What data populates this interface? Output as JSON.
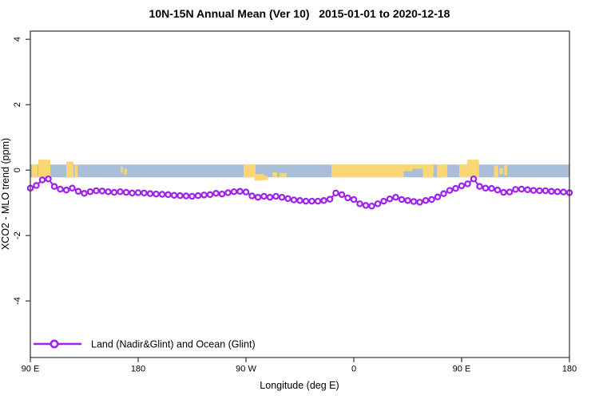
{
  "title": "10N-15N Annual Mean (Ver 10)   2015-01-01 to 2020-12-18",
  "legend": {
    "label": "Land (Nadir&Glint) and Ocean (Glint)"
  },
  "colors": {
    "line": "#A020F0",
    "marker_fill": "#FFFFFF",
    "ocean_band": "#A8BED9",
    "land": "#FBD774",
    "axis": "#333333",
    "text": "#000000",
    "background": "#FFFFFF"
  },
  "chart_data": {
    "type": "line",
    "title": "10N-15N Annual Mean (Ver 10)   2015-01-01 to 2020-12-18",
    "xlabel": "Longitude (deg E)",
    "ylabel": "XCO2 - MLO trend (ppm)",
    "x_range": [
      90,
      540
    ],
    "ylim": [
      -5.73,
      4.25
    ],
    "grid": false,
    "legend_position": "bottom-left-inside",
    "x_ticks": [
      {
        "pos": 90,
        "label": "90 E"
      },
      {
        "pos": 180,
        "label": "180"
      },
      {
        "pos": 270,
        "label": "90 W"
      },
      {
        "pos": 360,
        "label": "0"
      },
      {
        "pos": 450,
        "label": "90 E"
      },
      {
        "pos": 540,
        "label": "180"
      }
    ],
    "y_ticks": [
      {
        "pos": 4,
        "label": "4"
      },
      {
        "pos": 2,
        "label": "2"
      },
      {
        "pos": 0,
        "label": "0"
      },
      {
        "pos": -2,
        "label": "-2"
      },
      {
        "pos": -4,
        "label": "-4"
      }
    ],
    "series": [
      {
        "name": "Land (Nadir&Glint) and Ocean (Glint)",
        "marker": "open-circle",
        "x_start": 90,
        "x_step_deg": 5,
        "values": [
          -0.55,
          -0.47,
          -0.3,
          -0.27,
          -0.5,
          -0.58,
          -0.61,
          -0.55,
          -0.65,
          -0.71,
          -0.66,
          -0.63,
          -0.64,
          -0.66,
          -0.68,
          -0.66,
          -0.68,
          -0.7,
          -0.69,
          -0.7,
          -0.72,
          -0.73,
          -0.74,
          -0.75,
          -0.77,
          -0.78,
          -0.79,
          -0.8,
          -0.78,
          -0.76,
          -0.75,
          -0.71,
          -0.73,
          -0.69,
          -0.66,
          -0.65,
          -0.67,
          -0.79,
          -0.83,
          -0.8,
          -0.83,
          -0.8,
          -0.83,
          -0.87,
          -0.91,
          -0.93,
          -0.95,
          -0.95,
          -0.95,
          -0.93,
          -0.89,
          -0.7,
          -0.75,
          -0.85,
          -0.9,
          -1.03,
          -1.08,
          -1.1,
          -1.03,
          -0.95,
          -0.88,
          -0.83,
          -0.9,
          -0.93,
          -0.96,
          -0.98,
          -0.93,
          -0.9,
          -0.82,
          -0.72,
          -0.62,
          -0.56,
          -0.48,
          -0.42,
          -0.27,
          -0.5,
          -0.55,
          -0.56,
          -0.61,
          -0.68,
          -0.67,
          -0.59,
          -0.58,
          -0.6,
          -0.62,
          -0.63,
          -0.63,
          -0.65,
          -0.66,
          -0.67,
          -0.69
        ]
      }
    ],
    "map_strip": {
      "description": "ocean/land strip along 10N-15N drawn at y=0",
      "ocean_y_top": 0.17,
      "ocean_y_bottom": -0.22,
      "land_patches": [
        {
          "from": 91.3,
          "to": 96,
          "top": 0.17,
          "bottom": -0.22
        },
        {
          "from": 96.7,
          "to": 106.7,
          "top": 0.32,
          "bottom": -0.22
        },
        {
          "from": 120,
          "to": 126,
          "top": 0.26,
          "bottom": -0.22
        },
        {
          "from": 127,
          "to": 129.5,
          "top": 0.17,
          "bottom": -0.22
        },
        {
          "from": 165.5,
          "to": 167.5,
          "top": 0.1,
          "bottom": -0.08
        },
        {
          "from": 168.5,
          "to": 170.5,
          "top": 0.05,
          "bottom": -0.15
        },
        {
          "from": 268,
          "to": 278,
          "top": 0.17,
          "bottom": -0.22
        },
        {
          "from": 277,
          "to": 285,
          "top": -0.12,
          "bottom": -0.32
        },
        {
          "from": 285,
          "to": 288.5,
          "top": -0.18,
          "bottom": -0.3
        },
        {
          "from": 292,
          "to": 296,
          "top": -0.06,
          "bottom": -0.22
        },
        {
          "from": 298,
          "to": 304,
          "top": -0.09,
          "bottom": -0.22
        },
        {
          "from": 341.3,
          "to": 401.5,
          "top": 0.17,
          "bottom": -0.22
        },
        {
          "from": 401.5,
          "to": 409,
          "top": 0.17,
          "bottom": -0.03
        },
        {
          "from": 409,
          "to": 417.5,
          "top": 0.17,
          "bottom": 0.04
        },
        {
          "from": 417.5,
          "to": 426.5,
          "top": 0.17,
          "bottom": -0.22
        },
        {
          "from": 429.5,
          "to": 438,
          "top": 0.17,
          "bottom": -0.22
        },
        {
          "from": 448,
          "to": 454.5,
          "top": 0.17,
          "bottom": -0.22
        },
        {
          "from": 454.5,
          "to": 464.5,
          "top": 0.32,
          "bottom": -0.22
        },
        {
          "from": 477,
          "to": 480.5,
          "top": 0.14,
          "bottom": -0.22
        },
        {
          "from": 481.5,
          "to": 484.5,
          "top": 0.06,
          "bottom": -0.12
        },
        {
          "from": 485.5,
          "to": 488,
          "top": 0.16,
          "bottom": -0.16
        }
      ]
    }
  }
}
